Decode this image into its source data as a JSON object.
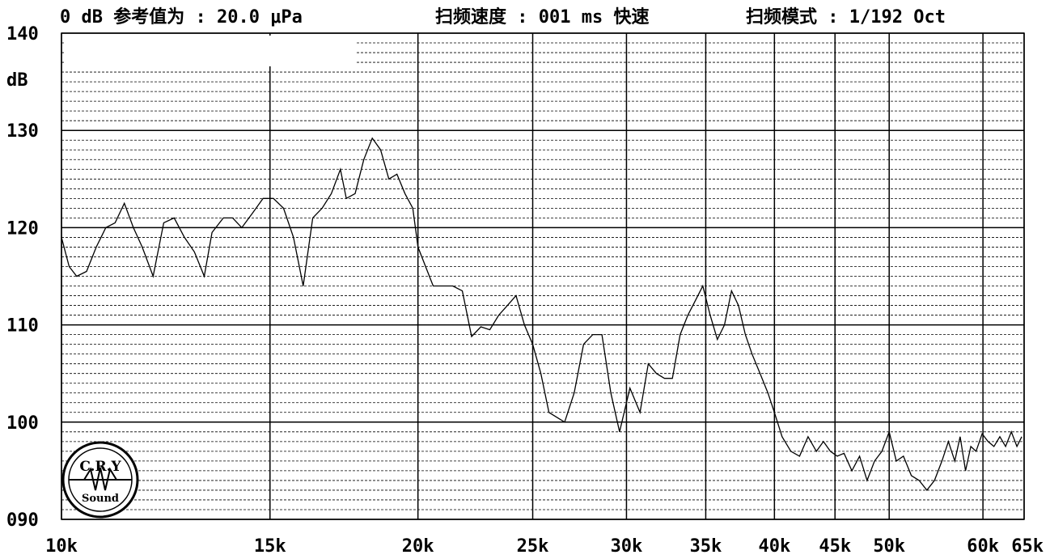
{
  "header": {
    "reference": "0 dB 参考值为 :  20.0 μPa",
    "sweep_speed": "扫频速度 : 001 ms 快速",
    "sweep_mode": "扫频模式 : 1/192 Oct"
  },
  "logo": {
    "top_text": "C.R.Y",
    "bottom_text": "Sound"
  },
  "chart_data": {
    "type": "line",
    "ylabel": "dB",
    "ylim": [
      90,
      140
    ],
    "xlim": [
      10000,
      65000
    ],
    "x_scale": "log",
    "grid": true,
    "yticks": [
      {
        "value": 140,
        "label": "140"
      },
      {
        "value": 130,
        "label": "130"
      },
      {
        "value": 120,
        "label": "120"
      },
      {
        "value": 110,
        "label": "110"
      },
      {
        "value": 100,
        "label": "100"
      },
      {
        "value": 90,
        "label": "090"
      }
    ],
    "xticks": [
      {
        "value": 10000,
        "label": "10k"
      },
      {
        "value": 15000,
        "label": "15k"
      },
      {
        "value": 20000,
        "label": "20k"
      },
      {
        "value": 25000,
        "label": "25k"
      },
      {
        "value": 30000,
        "label": "30k"
      },
      {
        "value": 35000,
        "label": "35k"
      },
      {
        "value": 40000,
        "label": "40k"
      },
      {
        "value": 45000,
        "label": "45k"
      },
      {
        "value": 50000,
        "label": "50k"
      },
      {
        "value": 60000,
        "label": "60k"
      },
      {
        "value": 65000,
        "label": "65k"
      }
    ],
    "series": [
      {
        "points": [
          [
            10000,
            119
          ],
          [
            10150,
            116
          ],
          [
            10300,
            115
          ],
          [
            10500,
            115.5
          ],
          [
            10700,
            118
          ],
          [
            10900,
            120
          ],
          [
            11100,
            120.5
          ],
          [
            11300,
            122.5
          ],
          [
            11500,
            120
          ],
          [
            11700,
            118
          ],
          [
            11950,
            115
          ],
          [
            12200,
            120.5
          ],
          [
            12450,
            121
          ],
          [
            12700,
            119
          ],
          [
            12950,
            117.5
          ],
          [
            13200,
            115
          ],
          [
            13400,
            119.5
          ],
          [
            13700,
            121
          ],
          [
            13950,
            121
          ],
          [
            14200,
            120
          ],
          [
            14500,
            121.5
          ],
          [
            14800,
            123
          ],
          [
            15100,
            123
          ],
          [
            15400,
            122
          ],
          [
            15700,
            119
          ],
          [
            16000,
            114
          ],
          [
            16300,
            121
          ],
          [
            16600,
            122
          ],
          [
            16900,
            123.5
          ],
          [
            17200,
            126
          ],
          [
            17400,
            123
          ],
          [
            17700,
            123.5
          ],
          [
            18000,
            127
          ],
          [
            18300,
            129.2
          ],
          [
            18600,
            128
          ],
          [
            18900,
            125
          ],
          [
            19200,
            125.5
          ],
          [
            19500,
            123.5
          ],
          [
            19800,
            122
          ],
          [
            20000,
            118
          ],
          [
            20300,
            116
          ],
          [
            20600,
            114
          ],
          [
            21000,
            114
          ],
          [
            21400,
            114
          ],
          [
            21800,
            113.5
          ],
          [
            22200,
            108.8
          ],
          [
            22600,
            109.8
          ],
          [
            23000,
            109.5
          ],
          [
            23400,
            111
          ],
          [
            23800,
            112
          ],
          [
            24200,
            113
          ],
          [
            24600,
            110
          ],
          [
            25000,
            108
          ],
          [
            25400,
            105
          ],
          [
            25800,
            101
          ],
          [
            26200,
            100.5
          ],
          [
            26600,
            100
          ],
          [
            27100,
            103
          ],
          [
            27600,
            108
          ],
          [
            28100,
            109
          ],
          [
            28600,
            109
          ],
          [
            29100,
            103
          ],
          [
            29600,
            99
          ],
          [
            30200,
            103.5
          ],
          [
            30800,
            101
          ],
          [
            31300,
            106
          ],
          [
            31800,
            105
          ],
          [
            32300,
            104.5
          ],
          [
            32800,
            104.5
          ],
          [
            33300,
            109
          ],
          [
            33800,
            111
          ],
          [
            34300,
            112.5
          ],
          [
            34800,
            114
          ],
          [
            35300,
            111
          ],
          [
            35800,
            108.5
          ],
          [
            36300,
            110
          ],
          [
            36800,
            113.5
          ],
          [
            37300,
            112
          ],
          [
            37800,
            109
          ],
          [
            38300,
            107
          ],
          [
            38900,
            105
          ],
          [
            39500,
            103
          ],
          [
            40000,
            101
          ],
          [
            40600,
            98.5
          ],
          [
            41300,
            97
          ],
          [
            42000,
            96.5
          ],
          [
            42700,
            98.5
          ],
          [
            43400,
            97
          ],
          [
            44000,
            98
          ],
          [
            44600,
            97
          ],
          [
            45200,
            96.5
          ],
          [
            45800,
            96.8
          ],
          [
            46500,
            95
          ],
          [
            47200,
            96.5
          ],
          [
            47900,
            94
          ],
          [
            48600,
            96
          ],
          [
            49300,
            97
          ],
          [
            50000,
            99
          ],
          [
            50700,
            96
          ],
          [
            51400,
            96.5
          ],
          [
            52200,
            94.5
          ],
          [
            53000,
            94
          ],
          [
            53800,
            93
          ],
          [
            54600,
            94
          ],
          [
            55400,
            96
          ],
          [
            56100,
            98
          ],
          [
            56800,
            96
          ],
          [
            57400,
            98.5
          ],
          [
            58000,
            95
          ],
          [
            58600,
            97.5
          ],
          [
            59200,
            97
          ],
          [
            59900,
            98.8
          ],
          [
            60600,
            98
          ],
          [
            61300,
            97.5
          ],
          [
            62000,
            98.5
          ],
          [
            62700,
            97.5
          ],
          [
            63400,
            99
          ],
          [
            64100,
            97.5
          ],
          [
            64700,
            98.5
          ]
        ]
      }
    ]
  }
}
